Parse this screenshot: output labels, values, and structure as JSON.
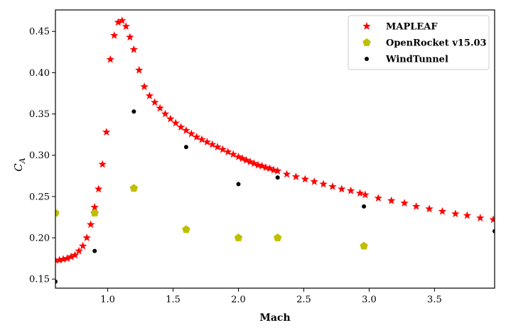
{
  "chart_data": {
    "type": "scatter",
    "title": "",
    "xlabel": "Mach",
    "ylabel": "C",
    "ylabel_subscript": "A",
    "xlim": [
      0.6,
      3.96
    ],
    "ylim": [
      0.139,
      0.476
    ],
    "xticks": [
      1.0,
      1.5,
      2.0,
      2.5,
      3.0,
      3.5
    ],
    "xtick_labels": [
      "1.0",
      "1.5",
      "2.0",
      "2.5",
      "3.0",
      "3.5"
    ],
    "yticks": [
      0.15,
      0.2,
      0.25,
      0.3,
      0.35,
      0.4,
      0.45
    ],
    "ytick_labels": [
      "0.15",
      "0.20",
      "0.25",
      "0.30",
      "0.35",
      "0.40",
      "0.45"
    ],
    "grid": false,
    "legend_position": "top-right",
    "series": [
      {
        "name": "MAPLEAF",
        "marker": "star",
        "color": "#ff0000",
        "x": [
          0.6,
          0.63,
          0.66,
          0.69,
          0.72,
          0.75,
          0.78,
          0.81,
          0.84,
          0.87,
          0.9,
          0.93,
          0.96,
          0.99,
          1.02,
          1.05,
          1.08,
          1.11,
          1.14,
          1.17,
          1.2,
          1.24,
          1.28,
          1.32,
          1.36,
          1.4,
          1.44,
          1.48,
          1.52,
          1.56,
          1.6,
          1.64,
          1.68,
          1.72,
          1.76,
          1.8,
          1.84,
          1.88,
          1.92,
          1.96,
          2.0,
          2.03,
          2.06,
          2.09,
          2.12,
          2.15,
          2.18,
          2.21,
          2.24,
          2.27,
          2.3,
          2.37,
          2.44,
          2.51,
          2.58,
          2.65,
          2.72,
          2.79,
          2.86,
          2.93,
          2.97,
          3.07,
          3.17,
          3.27,
          3.36,
          3.46,
          3.56,
          3.66,
          3.75,
          3.85,
          3.95
        ],
        "y": [
          0.173,
          0.173,
          0.174,
          0.175,
          0.177,
          0.179,
          0.184,
          0.19,
          0.2,
          0.216,
          0.237,
          0.259,
          0.289,
          0.328,
          0.416,
          0.445,
          0.461,
          0.463,
          0.456,
          0.443,
          0.428,
          0.403,
          0.383,
          0.372,
          0.364,
          0.357,
          0.35,
          0.344,
          0.339,
          0.334,
          0.33,
          0.326,
          0.322,
          0.319,
          0.316,
          0.313,
          0.31,
          0.307,
          0.304,
          0.301,
          0.298,
          0.296,
          0.294,
          0.292,
          0.29,
          0.288,
          0.287,
          0.285,
          0.284,
          0.282,
          0.281,
          0.277,
          0.274,
          0.271,
          0.268,
          0.265,
          0.262,
          0.259,
          0.257,
          0.254,
          0.252,
          0.248,
          0.245,
          0.242,
          0.238,
          0.235,
          0.232,
          0.229,
          0.227,
          0.224,
          0.222
        ]
      },
      {
        "name": "OpenRocket v15.03",
        "marker": "pentagon",
        "color": "#bfbf00",
        "x": [
          0.6,
          0.9,
          1.2,
          1.6,
          2.0,
          2.3,
          2.96
        ],
        "y": [
          0.23,
          0.23,
          0.26,
          0.21,
          0.2,
          0.2,
          0.19
        ]
      },
      {
        "name": "WindTunnel",
        "marker": "dot",
        "color": "#000000",
        "x": [
          0.6,
          0.9,
          1.2,
          1.6,
          2.0,
          2.3,
          2.96,
          3.96
        ],
        "y": [
          0.147,
          0.184,
          0.353,
          0.31,
          0.265,
          0.273,
          0.238,
          0.208
        ]
      }
    ]
  }
}
